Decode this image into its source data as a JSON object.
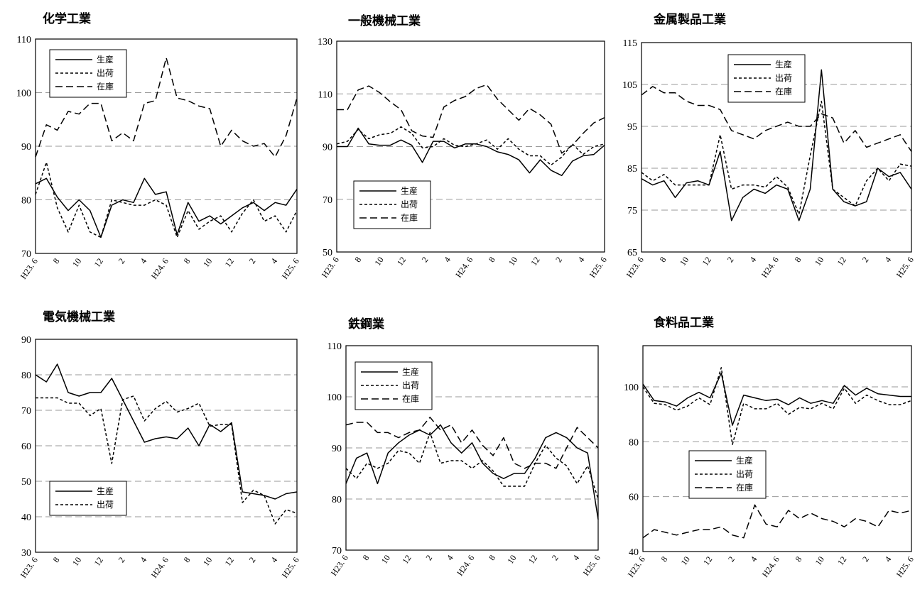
{
  "chart_data": [
    {
      "type": "line",
      "title": "化学工業",
      "ylim": [
        70,
        110
      ],
      "yticks": [
        70,
        80,
        90,
        100,
        110
      ],
      "grid": "horizontal-dashed",
      "legend_position": "top-left",
      "x_tick_labels": [
        "H23. 6",
        "8",
        "10",
        "12",
        "2",
        "4",
        "H24. 6",
        "8",
        "10",
        "12",
        "2",
        "4",
        "H25. 6"
      ],
      "series": [
        {
          "name": "生産",
          "dash": "solid",
          "values": [
            83,
            84,
            80.5,
            78,
            80,
            78,
            73,
            79,
            80,
            79.5,
            84,
            81,
            81.5,
            73.5,
            79.5,
            76,
            77,
            75.5,
            77,
            78.5,
            79.5,
            78,
            79.5,
            79,
            82
          ]
        },
        {
          "name": "出荷",
          "dash": "short",
          "values": [
            81,
            87,
            78.5,
            74,
            79,
            74,
            73,
            80,
            79.5,
            79,
            79,
            80,
            79,
            73,
            78,
            74.5,
            76,
            77,
            74,
            77.5,
            80,
            76,
            77,
            74,
            78
          ]
        },
        {
          "name": "在庫",
          "dash": "long",
          "values": [
            88,
            94,
            93,
            96.5,
            96,
            98,
            98,
            91,
            92.5,
            91,
            98,
            98.5,
            106.5,
            99,
            98.5,
            97.5,
            97,
            90,
            93,
            91,
            90,
            90.5,
            88,
            92,
            99
          ]
        }
      ]
    },
    {
      "type": "line",
      "title": "一般機械工業",
      "ylim": [
        50,
        130
      ],
      "yticks": [
        50,
        70,
        90,
        110,
        130
      ],
      "grid": "horizontal-dashed",
      "legend_position": "bottom-left",
      "x_tick_labels": [
        "H23. 6",
        "8",
        "10",
        "12",
        "2",
        "4",
        "H24. 6",
        "8",
        "10",
        "12",
        "2",
        "4",
        "H25. 6"
      ],
      "series": [
        {
          "name": "生産",
          "dash": "solid",
          "values": [
            90,
            90,
            97,
            91,
            90.5,
            90.5,
            92.5,
            90.5,
            84,
            92,
            92,
            89.5,
            91,
            91,
            90,
            88,
            87,
            85,
            80,
            85,
            81,
            79,
            84.5,
            86.5,
            87,
            90.5
          ]
        },
        {
          "name": "出荷",
          "dash": "short",
          "values": [
            91,
            92,
            96.5,
            93,
            94.5,
            95,
            97.5,
            95,
            89.5,
            90,
            93,
            90.5,
            90,
            91,
            92.5,
            89,
            93,
            89,
            86.5,
            86.5,
            83,
            86,
            91,
            87,
            90,
            91
          ]
        },
        {
          "name": "在庫",
          "dash": "long",
          "values": [
            104,
            104,
            111.5,
            113,
            110.5,
            107,
            104,
            96,
            94,
            93.5,
            105,
            107.5,
            109,
            112,
            113.5,
            108,
            104,
            100,
            104.5,
            102,
            98.5,
            87.5,
            90.5,
            95,
            99,
            101
          ]
        }
      ]
    },
    {
      "type": "line",
      "title": "金属製品工業",
      "ylim": [
        65,
        115
      ],
      "yticks": [
        65,
        75,
        85,
        95,
        105,
        115
      ],
      "grid": "horizontal-dashed",
      "legend_position": "top-center",
      "x_tick_labels": [
        "H23. 6",
        "8",
        "10",
        "12",
        "2",
        "4",
        "H24. 6",
        "8",
        "10",
        "12",
        "2",
        "4",
        "H25. 6"
      ],
      "series": [
        {
          "name": "生産",
          "dash": "solid",
          "values": [
            82.5,
            81,
            82,
            78,
            81.5,
            82,
            81,
            89,
            72.5,
            78,
            80,
            79,
            81,
            80,
            72.5,
            80,
            108.5,
            80,
            77,
            76,
            77,
            85,
            83,
            84,
            80
          ]
        },
        {
          "name": "出荷",
          "dash": "short",
          "values": [
            84,
            82,
            83.5,
            81,
            81,
            81,
            81,
            93,
            80,
            81,
            81,
            80.5,
            83,
            80.5,
            74,
            88,
            101,
            80,
            78,
            76,
            82,
            85,
            82,
            86,
            85.5
          ]
        },
        {
          "name": "在庫",
          "dash": "long",
          "values": [
            102.5,
            104.5,
            103,
            103,
            101,
            100,
            100,
            99,
            94,
            93,
            92,
            94,
            95,
            96,
            95,
            95,
            98,
            97,
            91,
            94,
            90,
            91,
            92,
            93,
            89
          ]
        }
      ]
    },
    {
      "type": "line",
      "title": "電気機械工業",
      "ylim": [
        30,
        90
      ],
      "yticks": [
        30,
        40,
        50,
        60,
        70,
        80,
        90
      ],
      "grid": "horizontal-dashed",
      "legend_position": "bottom-left",
      "x_tick_labels": [
        "H23. 6",
        "8",
        "10",
        "12",
        "2",
        "4",
        "H24. 6",
        "8",
        "10",
        "12",
        "2",
        "4",
        "H25. 6"
      ],
      "series": [
        {
          "name": "生産",
          "dash": "solid",
          "values": [
            80,
            78,
            83,
            75,
            74,
            75,
            75,
            79,
            73,
            67,
            61,
            62,
            62.5,
            62,
            65,
            60,
            66,
            64,
            66.5,
            47,
            46.5,
            46,
            45,
            46.5,
            47
          ]
        },
        {
          "name": "出荷",
          "dash": "short",
          "values": [
            73.5,
            73.5,
            73.5,
            72,
            72,
            68.5,
            70.5,
            55,
            73,
            74,
            67,
            70.5,
            72.5,
            69.5,
            70.5,
            72,
            65.5,
            66,
            66,
            44,
            47.5,
            46,
            38,
            42,
            41
          ]
        }
      ]
    },
    {
      "type": "line",
      "title": "鉄鋼業",
      "ylim": [
        70,
        110
      ],
      "yticks": [
        70,
        80,
        90,
        100,
        110
      ],
      "grid": "horizontal-dashed",
      "legend_position": "top-left",
      "x_tick_labels": [
        "H23. 6",
        "8",
        "10",
        "12",
        "2",
        "4",
        "H24. 6",
        "8",
        "10",
        "12",
        "2",
        "4",
        "H25. 6"
      ],
      "series": [
        {
          "name": "生産",
          "dash": "solid",
          "values": [
            83,
            88,
            89,
            83,
            89,
            91,
            92.5,
            93.5,
            92.5,
            94.5,
            91,
            89,
            91,
            87,
            85,
            84,
            85,
            85,
            88,
            92,
            93,
            92,
            90,
            89,
            76
          ]
        },
        {
          "name": "出荷",
          "dash": "short",
          "values": [
            86,
            84,
            87,
            86,
            87,
            89.5,
            89,
            87,
            93,
            87,
            87.5,
            87.5,
            86,
            87.5,
            85.5,
            82.5,
            82.5,
            82.5,
            87,
            90.5,
            88,
            86.5,
            83,
            86.5,
            80
          ]
        },
        {
          "name": "在庫",
          "dash": "long",
          "values": [
            94.5,
            95,
            95,
            93,
            93,
            92,
            93,
            93.5,
            96,
            93.5,
            94.5,
            91,
            93.5,
            90.5,
            88.5,
            92,
            87,
            86,
            87,
            87,
            86,
            90,
            94,
            92,
            90
          ]
        }
      ]
    },
    {
      "type": "line",
      "title": "食料品工業",
      "ylim": [
        40,
        115
      ],
      "yticks": [
        40,
        60,
        80,
        100
      ],
      "grid": "horizontal-dashed",
      "legend_position": "center-left",
      "x_tick_labels": [
        "H23. 6",
        "8",
        "10",
        "12",
        "2",
        "4",
        "H24. 6",
        "8",
        "10",
        "12",
        "2",
        "4",
        "H25. 6"
      ],
      "series": [
        {
          "name": "生産",
          "dash": "solid",
          "values": [
            101,
            95,
            94.5,
            93,
            96,
            98,
            96,
            105,
            86,
            97,
            96,
            95,
            95.5,
            93.5,
            96,
            94,
            95,
            94,
            100.5,
            97,
            99.5,
            97.5,
            97,
            96.5,
            96.5
          ]
        },
        {
          "name": "出荷",
          "dash": "short",
          "values": [
            100,
            94,
            93.5,
            91.5,
            93,
            96,
            93.5,
            107,
            79,
            94,
            92,
            92,
            94,
            90,
            92.5,
            92,
            94,
            92,
            99.5,
            94,
            97,
            95,
            93.5,
            93.5,
            95
          ]
        },
        {
          "name": "在庫",
          "dash": "long",
          "values": [
            45,
            48,
            47,
            46,
            47,
            48,
            48,
            49,
            46,
            45,
            57,
            50,
            49,
            55,
            52,
            54,
            52,
            51,
            49,
            52,
            51,
            49,
            55,
            54,
            55
          ]
        }
      ]
    }
  ]
}
